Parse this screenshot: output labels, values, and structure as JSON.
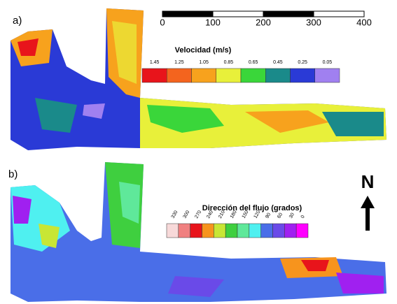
{
  "panels": [
    {
      "label": "a)",
      "legend": {
        "title": "Velocidad (m/s)",
        "classes": [
          {
            "label": "1.45",
            "color": "#e8141b"
          },
          {
            "label": "1.25",
            "color": "#f4641e"
          },
          {
            "label": "1.05",
            "color": "#f7a21d"
          },
          {
            "label": "0.85",
            "color": "#e8f03a"
          },
          {
            "label": "0.65",
            "color": "#3ad63a"
          },
          {
            "label": "0.45",
            "color": "#1a8a8a"
          },
          {
            "label": "0.25",
            "color": "#2a3ad6"
          },
          {
            "label": "0.05",
            "color": "#a080f0"
          }
        ]
      }
    },
    {
      "label": "b)",
      "legend": {
        "title": "Dirección del flujo (grados)",
        "classes": [
          {
            "label": "330",
            "color": "#f7d9d9"
          },
          {
            "label": "300",
            "color": "#f08080"
          },
          {
            "label": "270",
            "color": "#e8141b"
          },
          {
            "label": "240",
            "color": "#f7941d"
          },
          {
            "label": "210",
            "color": "#c8e635"
          },
          {
            "label": "180",
            "color": "#3fcf3f"
          },
          {
            "label": "150",
            "color": "#5fe89a"
          },
          {
            "label": "120",
            "color": "#4ff0f0"
          },
          {
            "label": "90",
            "color": "#4a6ee8"
          },
          {
            "label": "60",
            "color": "#6a4ae8"
          },
          {
            "label": "30",
            "color": "#a020f0"
          },
          {
            "label": "0",
            "color": "#ff00ff"
          }
        ]
      }
    }
  ],
  "scale_bar": {
    "labels": [
      "0",
      "100",
      "200",
      "300",
      "400"
    ]
  },
  "north": "N"
}
